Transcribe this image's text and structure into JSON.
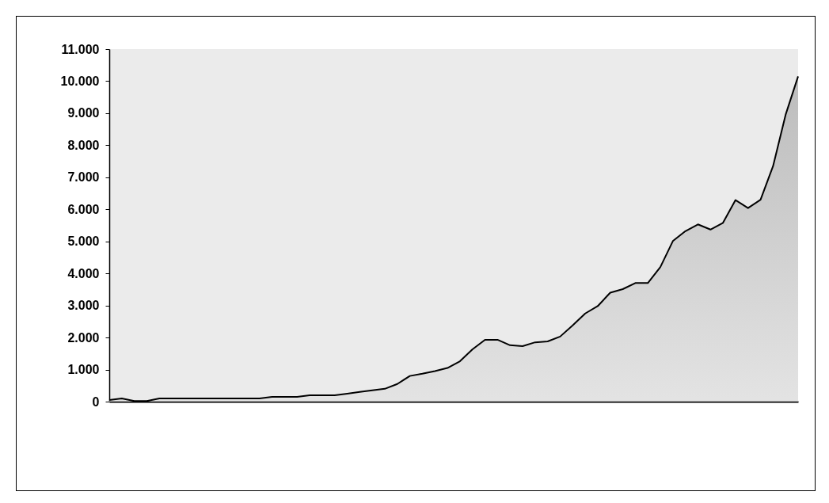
{
  "chart_data": {
    "type": "area",
    "categories": [
      null,
      null,
      null,
      null,
      null,
      null,
      null,
      null,
      null,
      null,
      null,
      null,
      null,
      null,
      null,
      null,
      null,
      null,
      null,
      null,
      null,
      null,
      null,
      null,
      null,
      null,
      null,
      null,
      null,
      null,
      null,
      null,
      null,
      null,
      null,
      null,
      null,
      null,
      null,
      null,
      null,
      null,
      null,
      null,
      null,
      null,
      null,
      null,
      null,
      null,
      null,
      null,
      null,
      null,
      null,
      null
    ],
    "series": [
      {
        "color": "#a8a8a8",
        "values": [
          50,
          100,
          20,
          20,
          100,
          100,
          100,
          100,
          100,
          100,
          100,
          100,
          100,
          150,
          150,
          150,
          200,
          200,
          200,
          250,
          300,
          350,
          400,
          550,
          800,
          870,
          950,
          1050,
          1260,
          1630,
          1930,
          1930,
          1760,
          1730,
          1850,
          1880,
          2030,
          2380,
          2750,
          2980,
          3400,
          3510,
          3700,
          3700,
          4200,
          5010,
          5320,
          5530,
          5370,
          5580,
          6290,
          6040,
          6300,
          7350,
          8950,
          10150
        ]
      }
    ],
    "ylim": [
      0,
      11000
    ],
    "yticks": [
      {
        "value": 0,
        "label": "0"
      },
      {
        "value": 1000,
        "label": "1.000"
      },
      {
        "value": 2000,
        "label": "2.000"
      },
      {
        "value": 3000,
        "label": "3.000"
      },
      {
        "value": 4000,
        "label": "4.000"
      },
      {
        "value": 5000,
        "label": "5.000"
      },
      {
        "value": 6000,
        "label": "6.000"
      },
      {
        "value": 7000,
        "label": "7.000"
      },
      {
        "value": 8000,
        "label": "8.000"
      },
      {
        "value": 9000,
        "label": "9.000"
      },
      {
        "value": 10000,
        "label": "10.000"
      },
      {
        "value": 11000,
        "label": "11.000"
      }
    ],
    "tick_labels": "y",
    "grid": false
  }
}
